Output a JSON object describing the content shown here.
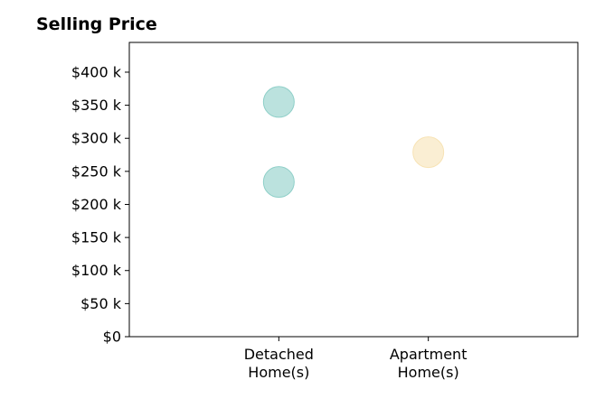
{
  "chart_data": {
    "type": "scatter",
    "title": "Selling Price",
    "xlabel": "",
    "ylabel": "",
    "categories": [
      [
        "Detached",
        "Home(s)"
      ],
      [
        "Apartment",
        "Home(s)"
      ]
    ],
    "y_ticks": [
      0,
      50000,
      100000,
      150000,
      200000,
      250000,
      300000,
      350000,
      400000
    ],
    "y_tick_labels": [
      "$0",
      "$50 k",
      "$100 k",
      "$150 k",
      "$200 k",
      "$250 k",
      "$300 k",
      "$350 k",
      "$400 k"
    ],
    "ylim": [
      0,
      445000
    ],
    "grid": false,
    "legend": "none",
    "points": [
      {
        "category": 0,
        "y": 355000,
        "color": "#8ecfc8"
      },
      {
        "category": 0,
        "y": 234000,
        "color": "#8ecfc8"
      },
      {
        "category": 1,
        "y": 279000,
        "color": "#f7e3b5"
      }
    ]
  }
}
